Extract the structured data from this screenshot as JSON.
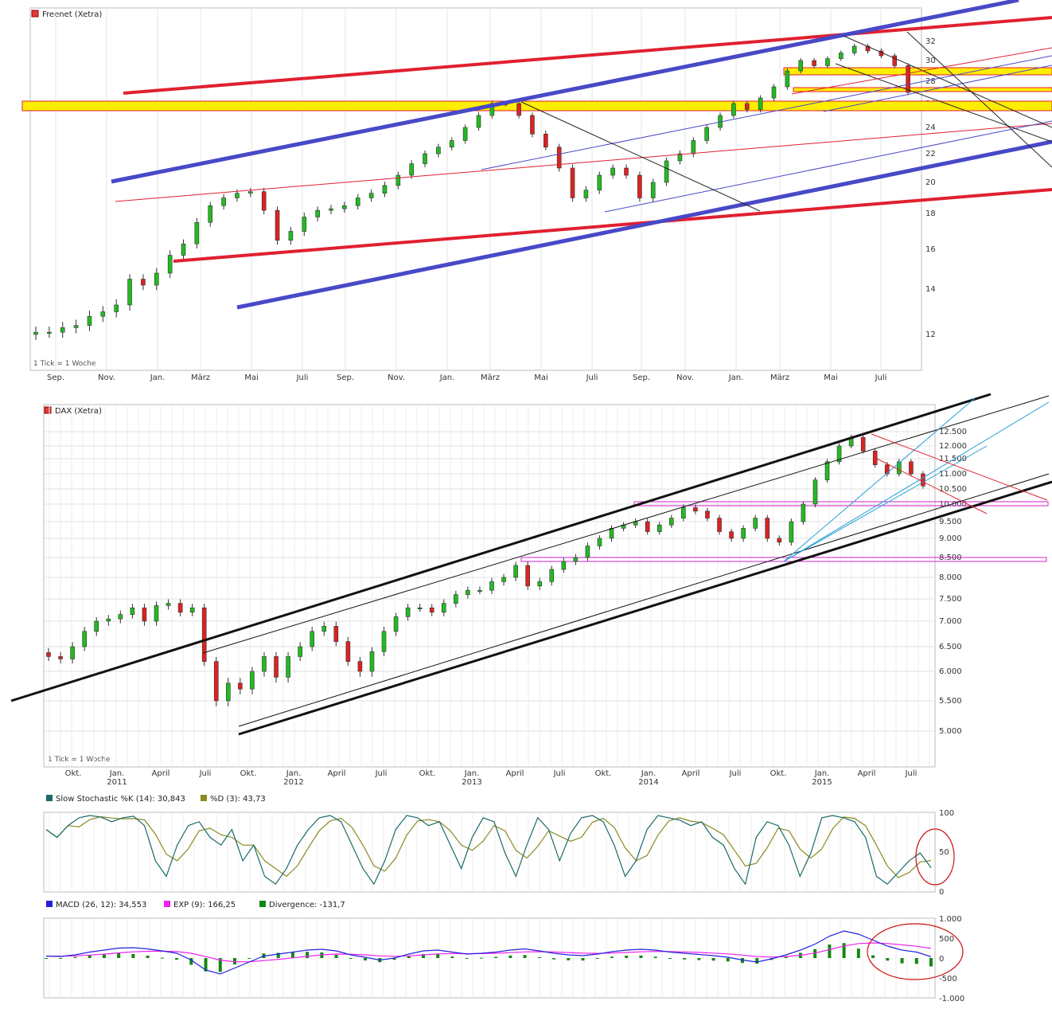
{
  "panels": {
    "freenet": {
      "title": "Freenet (Xetra)",
      "footer": "1 Tick = 1 Woche",
      "price_ticks": [
        "32",
        "30",
        "28",
        "26",
        "24",
        "22",
        "20",
        "18",
        "16",
        "14",
        "12"
      ],
      "month_labels": [
        "Sep.",
        "Nov.",
        "Jan.",
        "März",
        "Mai",
        "Juli",
        "Sep.",
        "Nov.",
        "Jan.",
        "März",
        "Mai",
        "Juli",
        "Sep.",
        "Nov.",
        "Jan.",
        "März",
        "Mai",
        "Juli"
      ]
    },
    "dax": {
      "title": "DAX (Xetra)",
      "footer": "1 Tick = 1 Woche",
      "price_ticks": [
        "12.500",
        "12.000",
        "11.500",
        "11.000",
        "10.500",
        "10.000",
        "9.500",
        "9.000",
        "8.500",
        "8.000",
        "7.500",
        "7.000",
        "6.500",
        "6.000",
        "5.500",
        "5.000"
      ],
      "month_labels": [
        "Okt.",
        "Jan.",
        "April",
        "Juli",
        "Okt.",
        "Jan.",
        "April",
        "Juli",
        "Okt.",
        "Jan.",
        "April",
        "Juli",
        "Okt.",
        "Jan.",
        "April",
        "Juli",
        "Okt.",
        "Jan.",
        "April",
        "Juli"
      ],
      "year_labels": [
        "2011",
        "2012",
        "2013",
        "2014",
        "2015"
      ]
    },
    "stochastic": {
      "legend_k": "Slow Stochastic %K (14): 30,843",
      "legend_d": "%D (3): 43,73",
      "ticks": [
        "100",
        "50",
        "0"
      ]
    },
    "macd": {
      "legend_macd": "MACD (26, 12): 34,553",
      "legend_exp": "EXP (9): 166,25",
      "legend_div": "Divergence: -131,7",
      "ticks": [
        "1.000",
        "500",
        "0",
        "-500",
        "-1.000"
      ]
    }
  },
  "colors": {
    "up": "#22bb22",
    "down": "#dd2222",
    "channel_blue": "#4848c8",
    "channel_red": "#e02030",
    "support_yellow": "#ffee00",
    "stoch_k": "#1a6a6a",
    "stoch_d": "#8a8a20",
    "macd": "#2222dd",
    "exp": "#ee22ee",
    "divergence": "#118811"
  },
  "chart_data": [
    {
      "type": "candlestick",
      "title": "Freenet (Xetra)",
      "interval": "weekly",
      "ylim": [
        11,
        34
      ],
      "series": [
        {
          "name": "Freenet (Xetra)",
          "values": [
            12.1,
            12.1,
            12.3,
            12.4,
            12.8,
            13.0,
            13.3,
            14.5,
            14.2,
            14.8,
            15.7,
            16.3,
            17.5,
            18.5,
            19.0,
            19.3,
            19.4,
            18.2,
            16.5,
            17.0,
            17.8,
            18.2,
            18.3,
            18.5,
            19.0,
            19.3,
            19.8,
            20.5,
            21.3,
            22.0,
            22.5,
            23.0,
            24.0,
            25.0,
            26.0,
            26.0,
            25.0,
            23.5,
            22.5,
            21.0,
            19.0,
            19.5,
            20.5,
            21.0,
            20.5,
            19.0,
            20.0,
            21.5,
            22.0,
            23.0,
            24.0,
            25.0,
            26.0,
            25.5,
            26.5,
            27.5,
            29.0,
            30.0,
            29.5,
            30.2,
            30.8,
            31.5,
            31.0,
            30.5,
            29.5,
            27.0
          ]
        }
      ]
    },
    {
      "type": "candlestick",
      "title": "DAX (Xetra)",
      "interval": "weekly",
      "ylim": [
        4600,
        12900
      ],
      "series": [
        {
          "name": "DAX (Xetra)",
          "values": [
            6300,
            6250,
            6500,
            6800,
            7000,
            7050,
            7150,
            7300,
            7000,
            7350,
            7400,
            7200,
            7300,
            6200,
            5500,
            5800,
            5700,
            6000,
            6300,
            5900,
            6300,
            6500,
            6800,
            6900,
            6600,
            6200,
            6000,
            6400,
            6800,
            7100,
            7300,
            7300,
            7200,
            7400,
            7600,
            7700,
            7700,
            7900,
            8000,
            8300,
            7800,
            7900,
            8200,
            8400,
            8500,
            8800,
            9000,
            9300,
            9400,
            9500,
            9200,
            9400,
            9600,
            9900,
            9800,
            9600,
            9200,
            9000,
            9300,
            9600,
            9000,
            8900,
            9500,
            10000,
            10800,
            11400,
            12000,
            12300,
            11800,
            11300,
            11000,
            11400,
            11000,
            10600
          ]
        }
      ]
    },
    {
      "type": "line",
      "title": "Slow Stochastic",
      "ylim": [
        0,
        100
      ],
      "series": [
        {
          "name": "Slow Stochastic %K (14)",
          "last": 30.843
        },
        {
          "name": "%D (3)",
          "last": 43.73
        }
      ]
    },
    {
      "type": "line",
      "title": "MACD",
      "ylim": [
        -1000,
        1000
      ],
      "series": [
        {
          "name": "MACD (26, 12)",
          "last": 34.553
        },
        {
          "name": "EXP (9)",
          "last": 166.25
        },
        {
          "name": "Divergence",
          "last": -131.7
        }
      ]
    }
  ]
}
